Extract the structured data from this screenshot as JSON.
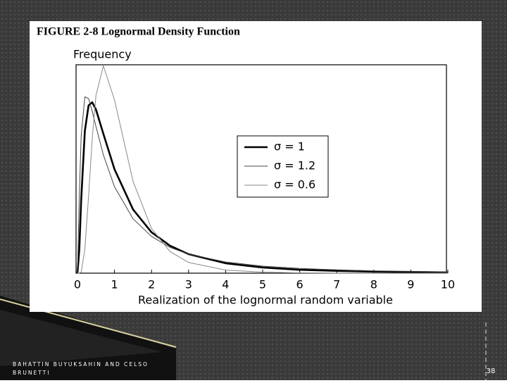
{
  "chart_data": {
    "type": "line",
    "title": "FIGURE 2-8 Lognormal Density Function",
    "y_label": "Frequency",
    "x_label": "Realization of the lognormal random variable",
    "x": [
      0,
      0.05,
      0.1,
      0.2,
      0.3,
      0.4,
      0.5,
      0.7,
      1,
      1.5,
      2,
      2.5,
      3,
      4,
      5,
      6,
      7,
      8,
      9,
      10
    ],
    "series": [
      {
        "name": "σ = 1",
        "color": "#000000",
        "line_width": 2.6,
        "values": [
          0,
          0.09,
          0.282,
          0.546,
          0.644,
          0.656,
          0.628,
          0.535,
          0.399,
          0.245,
          0.157,
          0.105,
          0.073,
          0.038,
          0.022,
          0.013,
          0.009,
          0.006,
          0.004,
          0.003
        ]
      },
      {
        "name": "σ = 1.2",
        "color": "#444444",
        "line_width": 1,
        "values": [
          0,
          0.294,
          0.528,
          0.677,
          0.67,
          0.621,
          0.563,
          0.454,
          0.332,
          0.209,
          0.141,
          0.099,
          0.073,
          0.043,
          0.027,
          0.018,
          0.013,
          0.009,
          0.007,
          0.005
        ]
      },
      {
        "name": "σ = 0.6",
        "color": "#888888",
        "line_width": 1,
        "values": [
          0,
          0.0,
          0.004,
          0.091,
          0.296,
          0.518,
          0.683,
          0.796,
          0.665,
          0.353,
          0.171,
          0.083,
          0.041,
          0.012,
          0.004,
          0.001,
          0.0,
          0.0,
          0.0,
          0.0
        ]
      }
    ],
    "xlim": [
      0,
      10
    ],
    "xticks": [
      0,
      1,
      2,
      3,
      4,
      5,
      6,
      7,
      8,
      9,
      10
    ],
    "ylim": [
      0,
      0.8
    ],
    "legend": "center-right"
  },
  "slide": {
    "footer": "BAHATTIN BUYUKSAHIN AND CELSO BRUNETTI",
    "page_number": "38"
  }
}
